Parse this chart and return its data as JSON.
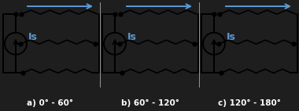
{
  "bg_white": "#ffffff",
  "bg_dark": "#1e1e1e",
  "cc": "#000000",
  "ac": "#5b9bd5",
  "ic": "#5b9bd5",
  "lc": "#ffffff",
  "label_fs": 7.5,
  "Is_fs": 9,
  "panels": [
    {
      "label": "a) 0° - 60°"
    },
    {
      "label": "b) 60° - 120°"
    },
    {
      "label": "c) 120° - 180°"
    }
  ]
}
